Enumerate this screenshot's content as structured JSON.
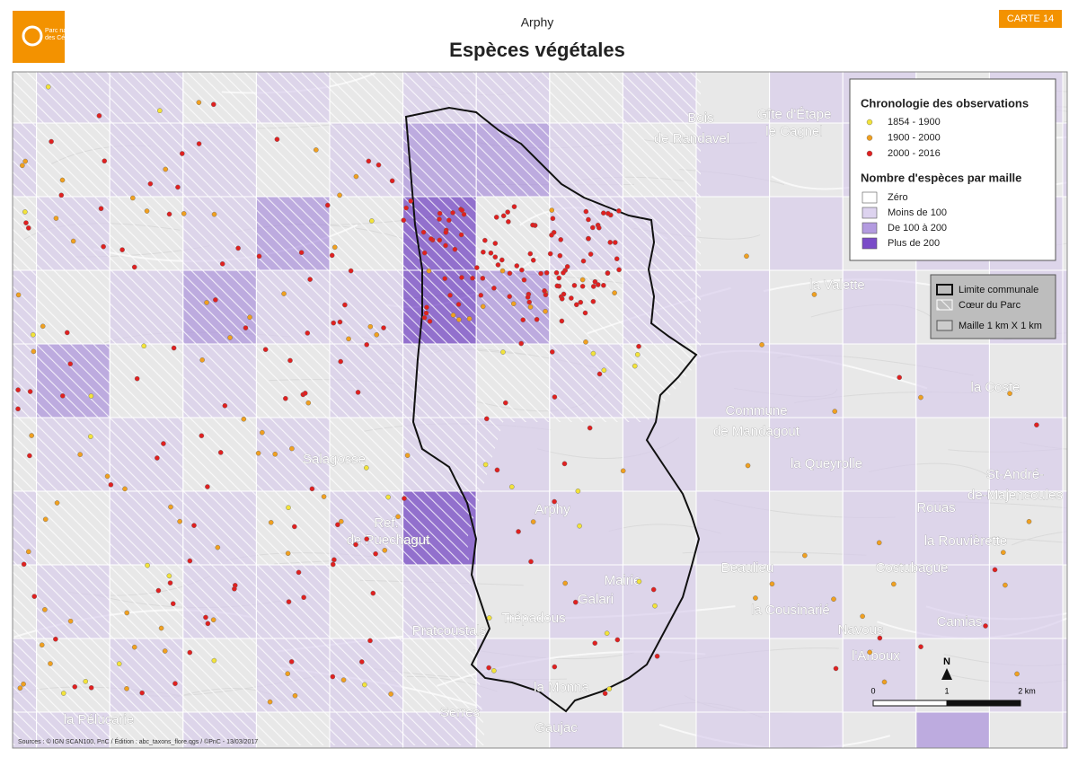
{
  "header": {
    "logo": [
      "Parc national",
      "des Cévennes"
    ],
    "title": "Arphy",
    "subtitle": "Espèces végétales",
    "badge": "CARTE 14"
  },
  "legend": {
    "chronology_title": "Chronologie des observations",
    "chronology": [
      {
        "label": "1854 - 1900",
        "color": "#f2e33a"
      },
      {
        "label": "1900 - 2000",
        "color": "#f0a020"
      },
      {
        "label": "2000 - 2016",
        "color": "#e02020"
      }
    ],
    "species_title": "Nombre d'espèces par maille",
    "species": [
      {
        "label": "Zéro",
        "color": "#ffffff"
      },
      {
        "label": "Moins de 100",
        "color": "#ddd3ef"
      },
      {
        "label": "De 100 à 200",
        "color": "#b39be0"
      },
      {
        "label": "Plus de 200",
        "color": "#7a4cc8"
      }
    ]
  },
  "boundaries": [
    "Limite communale",
    "Cœur du Parc",
    "Maille 1 km X 1 km"
  ],
  "north": "N",
  "scale": [
    "0",
    "1",
    "2 km"
  ],
  "places": [
    "Bois",
    "de Randavel",
    "Gîte d'Étape",
    "le Cagnel",
    "la Valette",
    "la Coste",
    "Commune",
    "de Mandagout",
    "la Queyrolle",
    "St-André-",
    "de-Majencoules",
    "Rouas",
    "Salagosse",
    "Ref.",
    "de Puechagut",
    "Arphy",
    "la Rouvièrette",
    "Beaulieu",
    "Costubague",
    "Mairie",
    "Galari",
    "Trépadous",
    "Pratcoustals",
    "la Cousinarié",
    "Navous",
    "Camias",
    "l'Arboux",
    "la Monna",
    "la Pélucarie",
    "Serres",
    "Gaujac"
  ],
  "sources": "Sources : © IGN SCAN100, PnC / Édition : abc_taxons_flore.qgs / ©PnC - 13/03/2017"
}
